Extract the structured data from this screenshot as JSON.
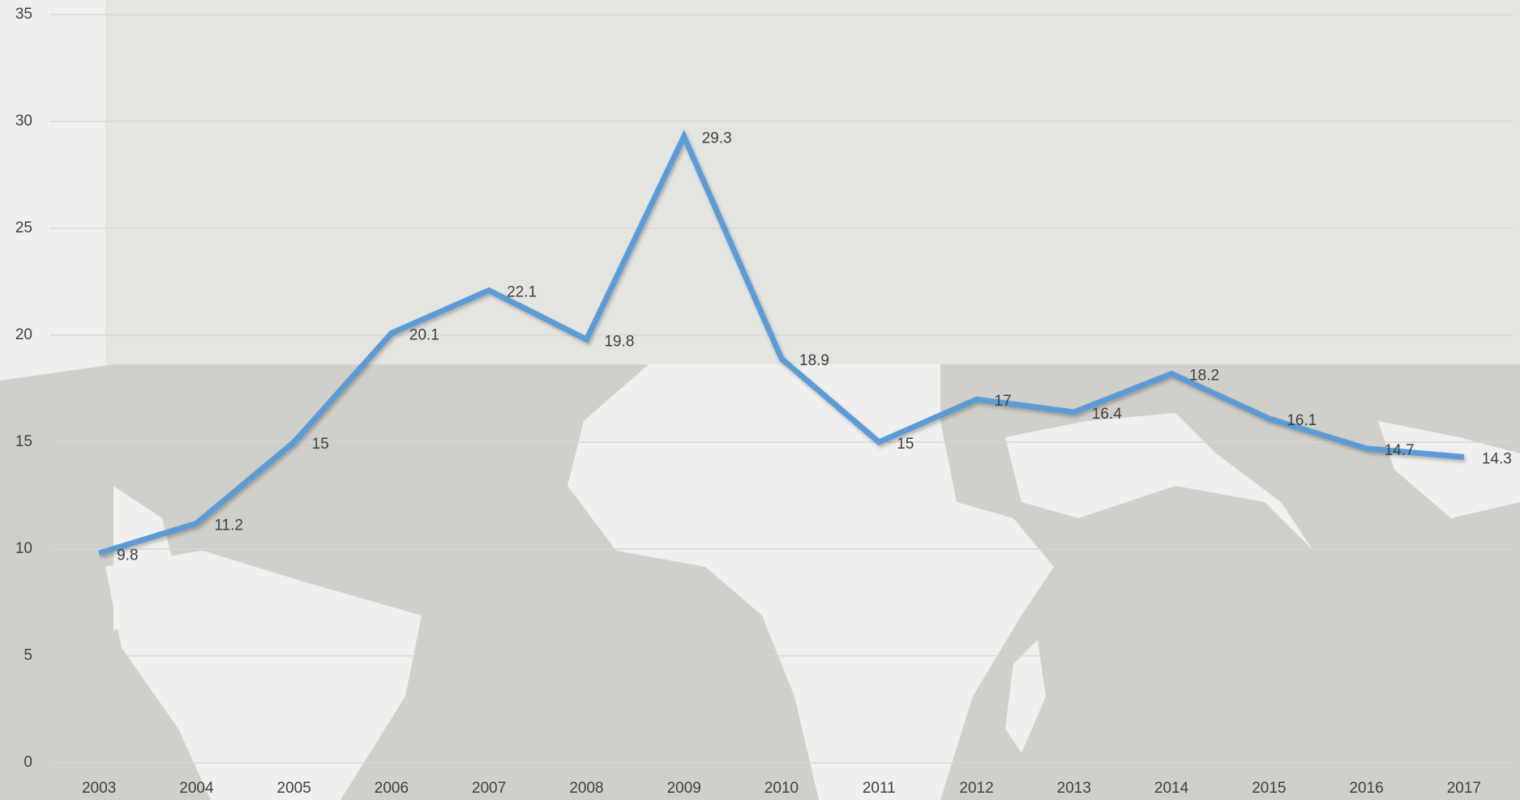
{
  "chart_data": {
    "type": "line",
    "categories": [
      "2003",
      "2004",
      "2005",
      "2006",
      "2007",
      "2008",
      "2009",
      "2010",
      "2011",
      "2012",
      "2013",
      "2014",
      "2015",
      "2016",
      "2017"
    ],
    "values": [
      9.8,
      11.2,
      15,
      20.1,
      22.1,
      19.8,
      29.3,
      18.9,
      15,
      17,
      16.4,
      18.2,
      16.1,
      14.7,
      14.3
    ],
    "color": "#5b9bd5",
    "ylim": [
      0,
      35
    ],
    "yticks": [
      0,
      5,
      10,
      15,
      20,
      25,
      30,
      35
    ],
    "grid": true
  }
}
